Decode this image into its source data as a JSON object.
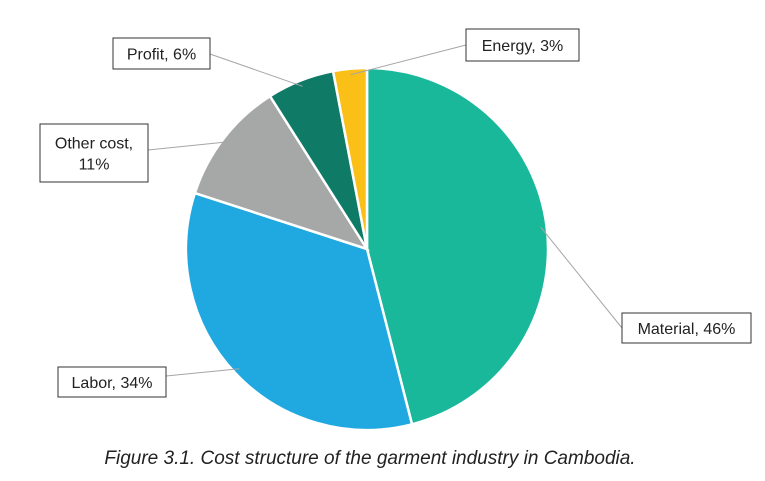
{
  "caption": "Figure 3.1. Cost structure of the garment industry in Cambodia.",
  "chart_data": {
    "type": "pie",
    "title": "",
    "start_angle_deg": 0,
    "direction": "clockwise",
    "slices": [
      {
        "category": "Material",
        "value": 46,
        "label": "Material, 46%",
        "color": "#1ab89b"
      },
      {
        "category": "Labor",
        "value": 34,
        "label": "Labor, 34%",
        "color": "#20a8e0"
      },
      {
        "category": "Other cost",
        "value": 11,
        "label_lines": [
          "Other cost,",
          "11%"
        ],
        "color": "#a6a7a7"
      },
      {
        "category": "Profit",
        "value": 6,
        "label": "Profit, 6%",
        "color": "#0f7a66"
      },
      {
        "category": "Energy",
        "value": 3,
        "label": "Energy, 3%",
        "color": "#fbc017"
      }
    ]
  }
}
